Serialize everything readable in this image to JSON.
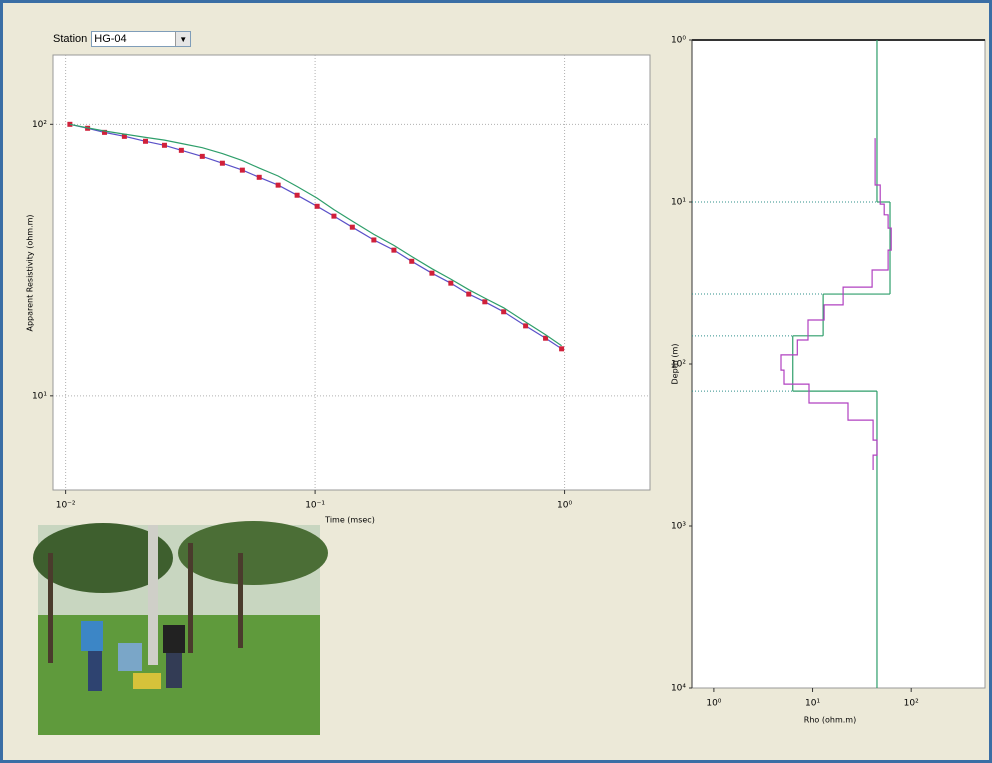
{
  "station_label": "Station",
  "station_value": "HG-04",
  "chart_data": [
    {
      "type": "line",
      "xlog": true,
      "ylog": true,
      "grid": true,
      "x_label": "Time (msec)",
      "y_label": "Apparent Resistivity (ohm.m)",
      "xlim": [
        0.0089,
        2.2
      ],
      "ylim": [
        4.5,
        180
      ],
      "xticks": [
        {
          "value": 0.01,
          "label": "10⁻²"
        },
        {
          "value": 0.1,
          "label": "10⁻¹"
        },
        {
          "value": 1,
          "label": "10⁰"
        }
      ],
      "yticks": [
        {
          "value": 10,
          "label": "10¹"
        },
        {
          "value": 100,
          "label": "10²"
        }
      ],
      "x": [
        0.0104,
        0.01225,
        0.01432,
        0.0172,
        0.0209,
        0.0249,
        0.0291,
        0.0353,
        0.0425,
        0.0511,
        0.0597,
        0.0711,
        0.0847,
        0.1019,
        0.119,
        0.141,
        0.172,
        0.207,
        0.244,
        0.294,
        0.35,
        0.413,
        0.479,
        0.57,
        0.698,
        0.839,
        0.973
      ],
      "series": [
        {
          "color": "#d0203a",
          "line_color": "#5a50c8",
          "marker": "square",
          "values": [
            100,
            96.7,
            93.4,
            90.3,
            86.6,
            83.7,
            80.2,
            76.2,
            71.9,
            67.8,
            63.8,
            59.7,
            54.8,
            49.9,
            45.9,
            41.8,
            37.5,
            34.4,
            31.3,
            28.3,
            26.0,
            23.7,
            22.2,
            20.4,
            18.1,
            16.3,
            14.9
          ]
        },
        {
          "color": "#2e9e6a",
          "values": [
            100,
            97,
            94.5,
            92,
            89.5,
            87.5,
            85,
            82,
            78,
            73.5,
            69,
            64.5,
            59,
            53.5,
            48.5,
            44,
            39.3,
            35.8,
            32.6,
            29.4,
            26.9,
            24.6,
            22.9,
            21.1,
            18.7,
            16.8,
            15.3
          ]
        }
      ]
    },
    {
      "type": "step",
      "xlog": true,
      "ylog": true,
      "yreverse": true,
      "boundary_lines": true,
      "x_label": "Rho (ohm.m)",
      "y_label": "Depth (m)",
      "xlim": [
        0.6,
        560
      ],
      "ylim": [
        1,
        10000
      ],
      "xticks": [
        {
          "value": 1,
          "label": "10⁰"
        },
        {
          "value": 10,
          "label": "10¹"
        },
        {
          "value": 100,
          "label": "10²"
        }
      ],
      "yticks": [
        {
          "value": 1,
          "label": "10⁰"
        },
        {
          "value": 10,
          "label": "10¹"
        },
        {
          "value": 100,
          "label": "10²"
        },
        {
          "value": 1000,
          "label": "10³"
        },
        {
          "value": 10000,
          "label": "10⁴"
        }
      ],
      "series": [
        {
          "color": "#2e9e6a",
          "rho": [
            45,
            61,
            12.8,
            6.3,
            45
          ],
          "depths": [
            10,
            37,
            67,
            147
          ]
        },
        {
          "color": "#b040c0",
          "x": [
            43.1,
            43.1,
            48.5,
            48.5,
            53.2,
            53.2,
            58.4,
            58.4,
            62.7,
            62.7,
            58.4,
            58.4,
            40.2,
            40.2,
            20.4,
            20.4,
            13.1,
            13.1,
            9.0,
            9.0,
            7.0,
            7.0,
            4.79,
            4.79,
            5.14,
            5.14,
            9.2,
            9.2,
            22.9,
            22.9,
            41.1,
            41.1,
            45,
            45,
            41.1,
            41.1
          ],
          "y": [
            4.03,
            7.85,
            7.85,
            10.3,
            10.3,
            12.0,
            12.0,
            14.5,
            14.5,
            19.8,
            19.8,
            26.3,
            26.3,
            33.5,
            33.5,
            43.2,
            43.2,
            53.5,
            53.5,
            71.1,
            71.1,
            87.9,
            87.9,
            109,
            109,
            133,
            133,
            174,
            174,
            222,
            222,
            295,
            295,
            365,
            365,
            451
          ]
        }
      ]
    }
  ]
}
